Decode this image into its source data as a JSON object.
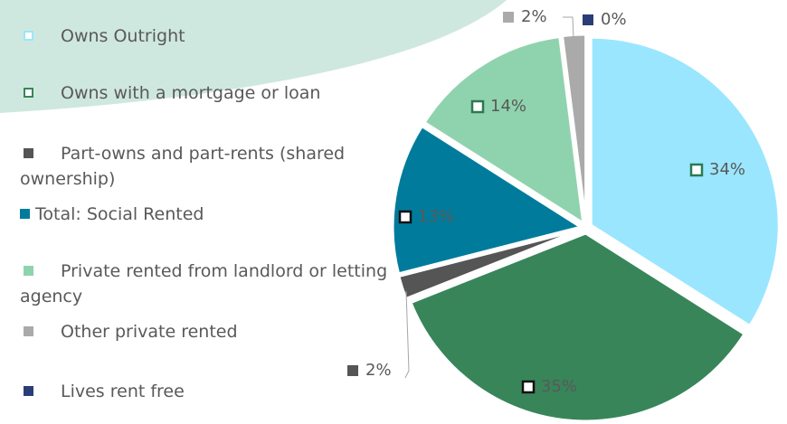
{
  "chart_data": {
    "type": "pie",
    "categories": [
      "Owns Outright",
      "Owns with a mortgage or loan",
      "Part-owns and part-rents (shared ownership)",
      "Total: Social Rented",
      "Private rented from landlord or letting agency",
      "Other private rented",
      "Lives rent free"
    ],
    "values": [
      34,
      35,
      2,
      13,
      14,
      2,
      0
    ],
    "value_labels": [
      "34%",
      "35%",
      "2%",
      "13%",
      "14%",
      "2%",
      "0%"
    ],
    "colors": [
      "#9ae6ff",
      "#38855a",
      "#555555",
      "#007b9c",
      "#8fd3ae",
      "#aaaaaa",
      "#2b3d78"
    ],
    "legend": "left"
  }
}
